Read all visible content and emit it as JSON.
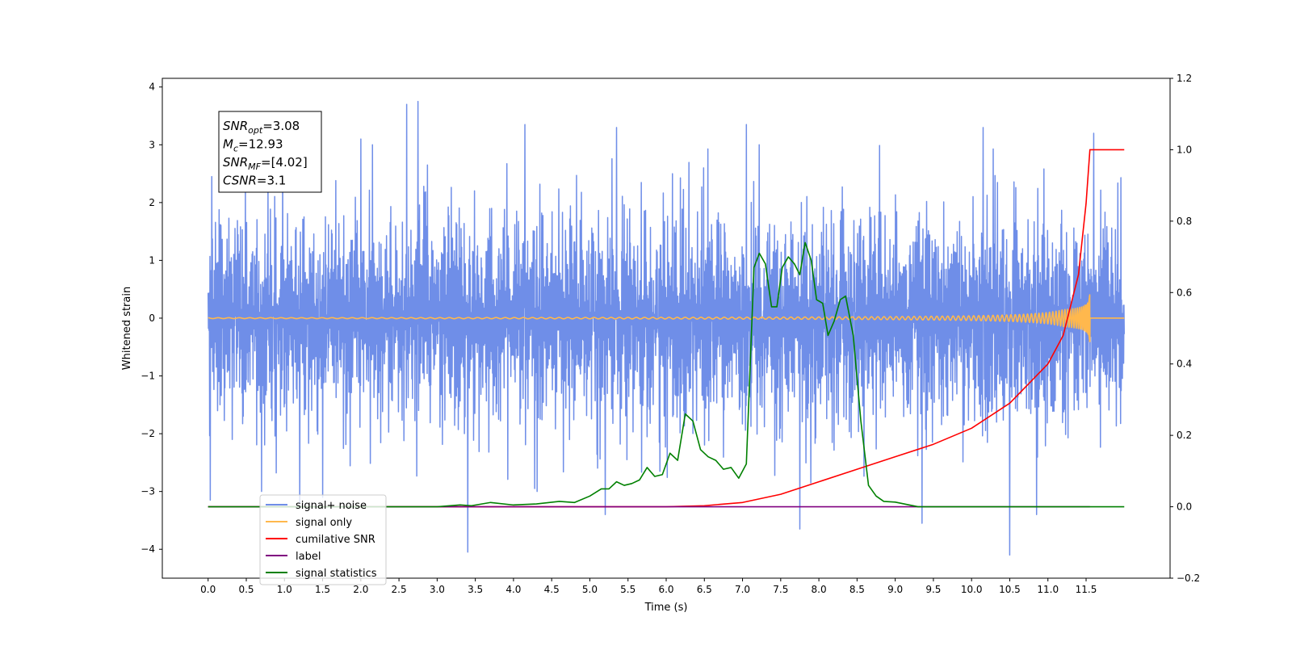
{
  "chart_data": {
    "type": "line",
    "xlabel": "Time (s)",
    "ylabel_left": "Whitened strain",
    "ylabel_right": "",
    "xlim": [
      -0.6,
      12.6
    ],
    "ylim_left": [
      -4.5,
      4.15
    ],
    "ylim_right": [
      -0.2,
      1.2
    ],
    "x_ticks": [
      "0.0",
      "0.5",
      "1.0",
      "1.5",
      "2.0",
      "2.5",
      "3.0",
      "3.5",
      "4.0",
      "4.5",
      "5.0",
      "5.5",
      "6.0",
      "6.5",
      "7.0",
      "7.5",
      "8.0",
      "8.5",
      "9.0",
      "9.5",
      "10.0",
      "10.5",
      "11.0",
      "11.5"
    ],
    "y_ticks_left": [
      "4",
      "3",
      "2",
      "1",
      "0",
      "−1",
      "−2",
      "−3",
      "−4"
    ],
    "y_ticks_right": [
      "1.2",
      "1.0",
      "0.8",
      "0.6",
      "0.4",
      "0.2",
      "0.0",
      "−0.2"
    ],
    "grid": false,
    "legend_position": "lower-left",
    "info_box": {
      "lines": [
        {
          "base": "SNR",
          "sub": "opt",
          "value": "=3.08"
        },
        {
          "base": "M",
          "sub": "c",
          "value": "=12.93"
        },
        {
          "base": "SNR",
          "sub": "MF",
          "value": "=[4.02]"
        },
        {
          "base": "CSNR",
          "sub": "",
          "value": "=3.1"
        }
      ]
    },
    "series": [
      {
        "name": "signal+ noise",
        "axis": "left",
        "color": "#6f8ee8",
        "kind": "noise",
        "x_range": [
          0.0,
          12.0
        ],
        "envelope_typical": [
          -2.0,
          2.0
        ],
        "extreme_spikes": [
          {
            "x": 0.03,
            "y": -3.15
          },
          {
            "x": 0.05,
            "y": 2.45
          },
          {
            "x": 1.2,
            "y": -3.2
          },
          {
            "x": 1.5,
            "y": -3.1
          },
          {
            "x": 2.0,
            "y": 3.1
          },
          {
            "x": 2.6,
            "y": 3.7
          },
          {
            "x": 2.75,
            "y": 3.75
          },
          {
            "x": 3.4,
            "y": -4.05
          },
          {
            "x": 4.15,
            "y": 3.35
          },
          {
            "x": 5.2,
            "y": -3.4
          },
          {
            "x": 5.35,
            "y": 3.3
          },
          {
            "x": 7.05,
            "y": 3.35
          },
          {
            "x": 7.75,
            "y": -3.65
          },
          {
            "x": 9.35,
            "y": -3.55
          },
          {
            "x": 10.15,
            "y": 3.3
          },
          {
            "x": 10.5,
            "y": -4.1
          },
          {
            "x": 10.85,
            "y": -3.4
          },
          {
            "x": 11.6,
            "y": 3.2
          }
        ]
      },
      {
        "name": "signal only",
        "axis": "left",
        "color": "#ffb84d",
        "kind": "chirp",
        "x_range": [
          0.0,
          12.0
        ],
        "merger_time": 11.55,
        "peak_amplitude": 0.45
      },
      {
        "name": "cumilative SNR",
        "axis": "right",
        "color": "#ff0000",
        "x": [
          0.0,
          6.0,
          6.5,
          7.0,
          7.5,
          8.0,
          8.5,
          9.0,
          9.5,
          10.0,
          10.5,
          11.0,
          11.2,
          11.4,
          11.5,
          11.55,
          12.0
        ],
        "y": [
          0.0,
          0.0,
          0.003,
          0.012,
          0.035,
          0.07,
          0.105,
          0.14,
          0.175,
          0.22,
          0.29,
          0.4,
          0.48,
          0.65,
          0.85,
          1.0,
          1.0
        ]
      },
      {
        "name": "label",
        "axis": "right",
        "color": "#800080",
        "x": [
          0.0,
          11.55
        ],
        "y": [
          0.0,
          0.0
        ]
      },
      {
        "name": "signal statistics",
        "axis": "right",
        "color": "#008000",
        "x": [
          0.0,
          3.0,
          3.3,
          3.45,
          3.7,
          4.0,
          4.3,
          4.6,
          4.8,
          5.0,
          5.15,
          5.25,
          5.35,
          5.45,
          5.55,
          5.65,
          5.75,
          5.85,
          5.95,
          6.05,
          6.15,
          6.25,
          6.35,
          6.45,
          6.55,
          6.65,
          6.75,
          6.85,
          6.95,
          7.05,
          7.15,
          7.22,
          7.3,
          7.38,
          7.45,
          7.52,
          7.6,
          7.68,
          7.75,
          7.82,
          7.9,
          7.97,
          8.05,
          8.12,
          8.2,
          8.28,
          8.35,
          8.45,
          8.55,
          8.65,
          8.75,
          8.85,
          9.0,
          9.3,
          12.0
        ],
        "y": [
          0.0,
          0.0,
          0.005,
          0.003,
          0.012,
          0.005,
          0.008,
          0.015,
          0.012,
          0.03,
          0.05,
          0.05,
          0.07,
          0.06,
          0.065,
          0.075,
          0.11,
          0.085,
          0.09,
          0.15,
          0.13,
          0.26,
          0.24,
          0.16,
          0.14,
          0.13,
          0.105,
          0.11,
          0.08,
          0.12,
          0.67,
          0.71,
          0.68,
          0.56,
          0.56,
          0.67,
          0.7,
          0.68,
          0.65,
          0.74,
          0.69,
          0.58,
          0.57,
          0.48,
          0.52,
          0.58,
          0.59,
          0.48,
          0.24,
          0.06,
          0.03,
          0.015,
          0.013,
          0.0,
          0.0
        ]
      }
    ],
    "legend": [
      {
        "name": "signal+ noise",
        "color": "#6f8ee8"
      },
      {
        "name": "signal only",
        "color": "#ffb84d"
      },
      {
        "name": "cumilative SNR",
        "color": "#ff0000"
      },
      {
        "name": "label",
        "color": "#800080"
      },
      {
        "name": "signal statistics",
        "color": "#008000"
      }
    ]
  }
}
